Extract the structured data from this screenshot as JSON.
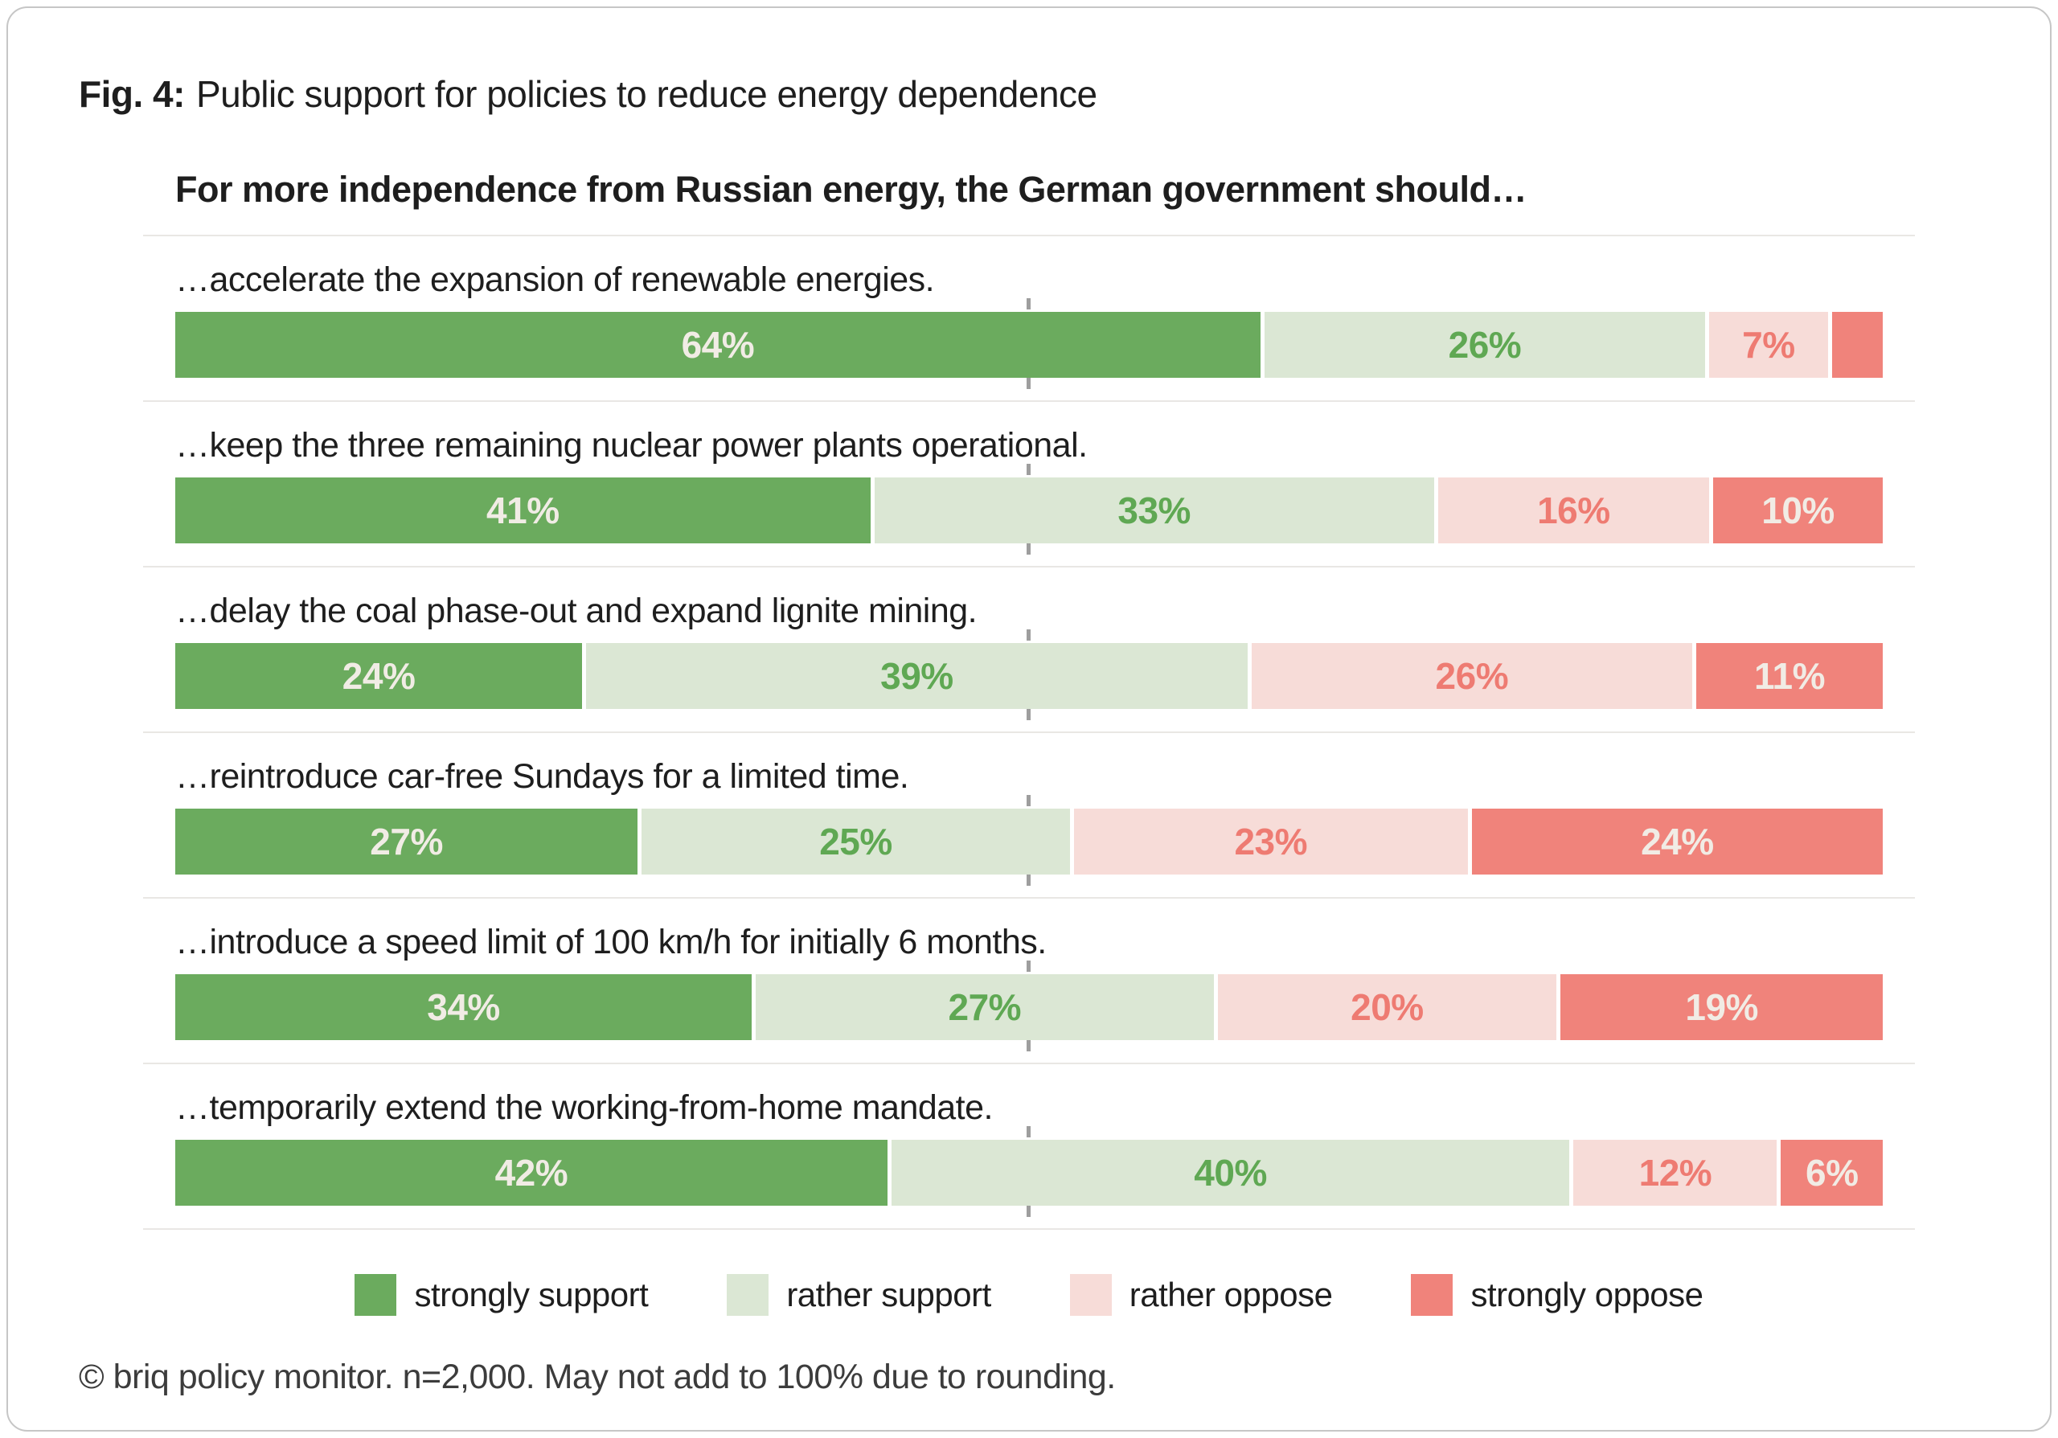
{
  "figure": {
    "label": "Fig. 4:",
    "title": "Public support for policies to reduce energy dependence"
  },
  "colors": {
    "strongly_support": "#6bab5e",
    "rather_support": "#dbe7d4",
    "rather_oppose": "#f7dcd8",
    "strongly_oppose": "#f0837b",
    "label_on_dark": "#f1ece5",
    "label_rather_support": "#5fa853",
    "label_rather_oppose": "#ee7b72",
    "separator": "#e9e7e4",
    "tick": "#9e9e9e"
  },
  "chart_data": {
    "type": "bar",
    "orientation": "horizontal",
    "stacked": true,
    "title": "Fig. 4: Public support for policies to reduce energy dependence",
    "question": "For more independence from Russian energy, the German government should…",
    "xlim": [
      0,
      100
    ],
    "value_unit": "%",
    "midline_ticks_at_percent": 50,
    "legend_position": "bottom",
    "legend": [
      {
        "label": "strongly support",
        "color": "#6bab5e"
      },
      {
        "label": "rather support",
        "color": "#dbe7d4"
      },
      {
        "label": "rather oppose",
        "color": "#f7dcd8"
      },
      {
        "label": "strongly oppose",
        "color": "#f0837b"
      }
    ],
    "rows": [
      {
        "label": "…accelerate the expansion of renewable energies.",
        "segments": [
          {
            "series": "strongly support",
            "value": 64,
            "text": "64%"
          },
          {
            "series": "rather support",
            "value": 26,
            "text": "26%"
          },
          {
            "series": "rather oppose",
            "value": 7,
            "text": "7%"
          },
          {
            "series": "strongly oppose",
            "value": 3,
            "text": ""
          }
        ]
      },
      {
        "label": "…keep the three remaining nuclear power plants operational.",
        "segments": [
          {
            "series": "strongly support",
            "value": 41,
            "text": "41%"
          },
          {
            "series": "rather support",
            "value": 33,
            "text": "33%"
          },
          {
            "series": "rather oppose",
            "value": 16,
            "text": "16%"
          },
          {
            "series": "strongly oppose",
            "value": 10,
            "text": "10%"
          }
        ]
      },
      {
        "label": "…delay the coal phase-out and expand lignite mining.",
        "segments": [
          {
            "series": "strongly support",
            "value": 24,
            "text": "24%"
          },
          {
            "series": "rather support",
            "value": 39,
            "text": "39%"
          },
          {
            "series": "rather oppose",
            "value": 26,
            "text": "26%"
          },
          {
            "series": "strongly oppose",
            "value": 11,
            "text": "11%"
          }
        ]
      },
      {
        "label": "…reintroduce car-free Sundays for a limited time.",
        "segments": [
          {
            "series": "strongly support",
            "value": 27,
            "text": "27%"
          },
          {
            "series": "rather support",
            "value": 25,
            "text": "25%"
          },
          {
            "series": "rather oppose",
            "value": 23,
            "text": "23%"
          },
          {
            "series": "strongly oppose",
            "value": 24,
            "text": "24%"
          }
        ]
      },
      {
        "label": "…introduce a speed limit of 100 km/h for initially 6 months.",
        "segments": [
          {
            "series": "strongly support",
            "value": 34,
            "text": "34%"
          },
          {
            "series": "rather support",
            "value": 27,
            "text": "27%"
          },
          {
            "series": "rather oppose",
            "value": 20,
            "text": "20%"
          },
          {
            "series": "strongly oppose",
            "value": 19,
            "text": "19%"
          }
        ]
      },
      {
        "label": "…temporarily extend the working-from-home mandate.",
        "segments": [
          {
            "series": "strongly support",
            "value": 42,
            "text": "42%"
          },
          {
            "series": "rather support",
            "value": 40,
            "text": "40%"
          },
          {
            "series": "rather oppose",
            "value": 12,
            "text": "12%"
          },
          {
            "series": "strongly oppose",
            "value": 6,
            "text": "6%"
          }
        ]
      }
    ]
  },
  "footer": "© briq policy monitor. n=2,000. May not add to 100% due to rounding."
}
